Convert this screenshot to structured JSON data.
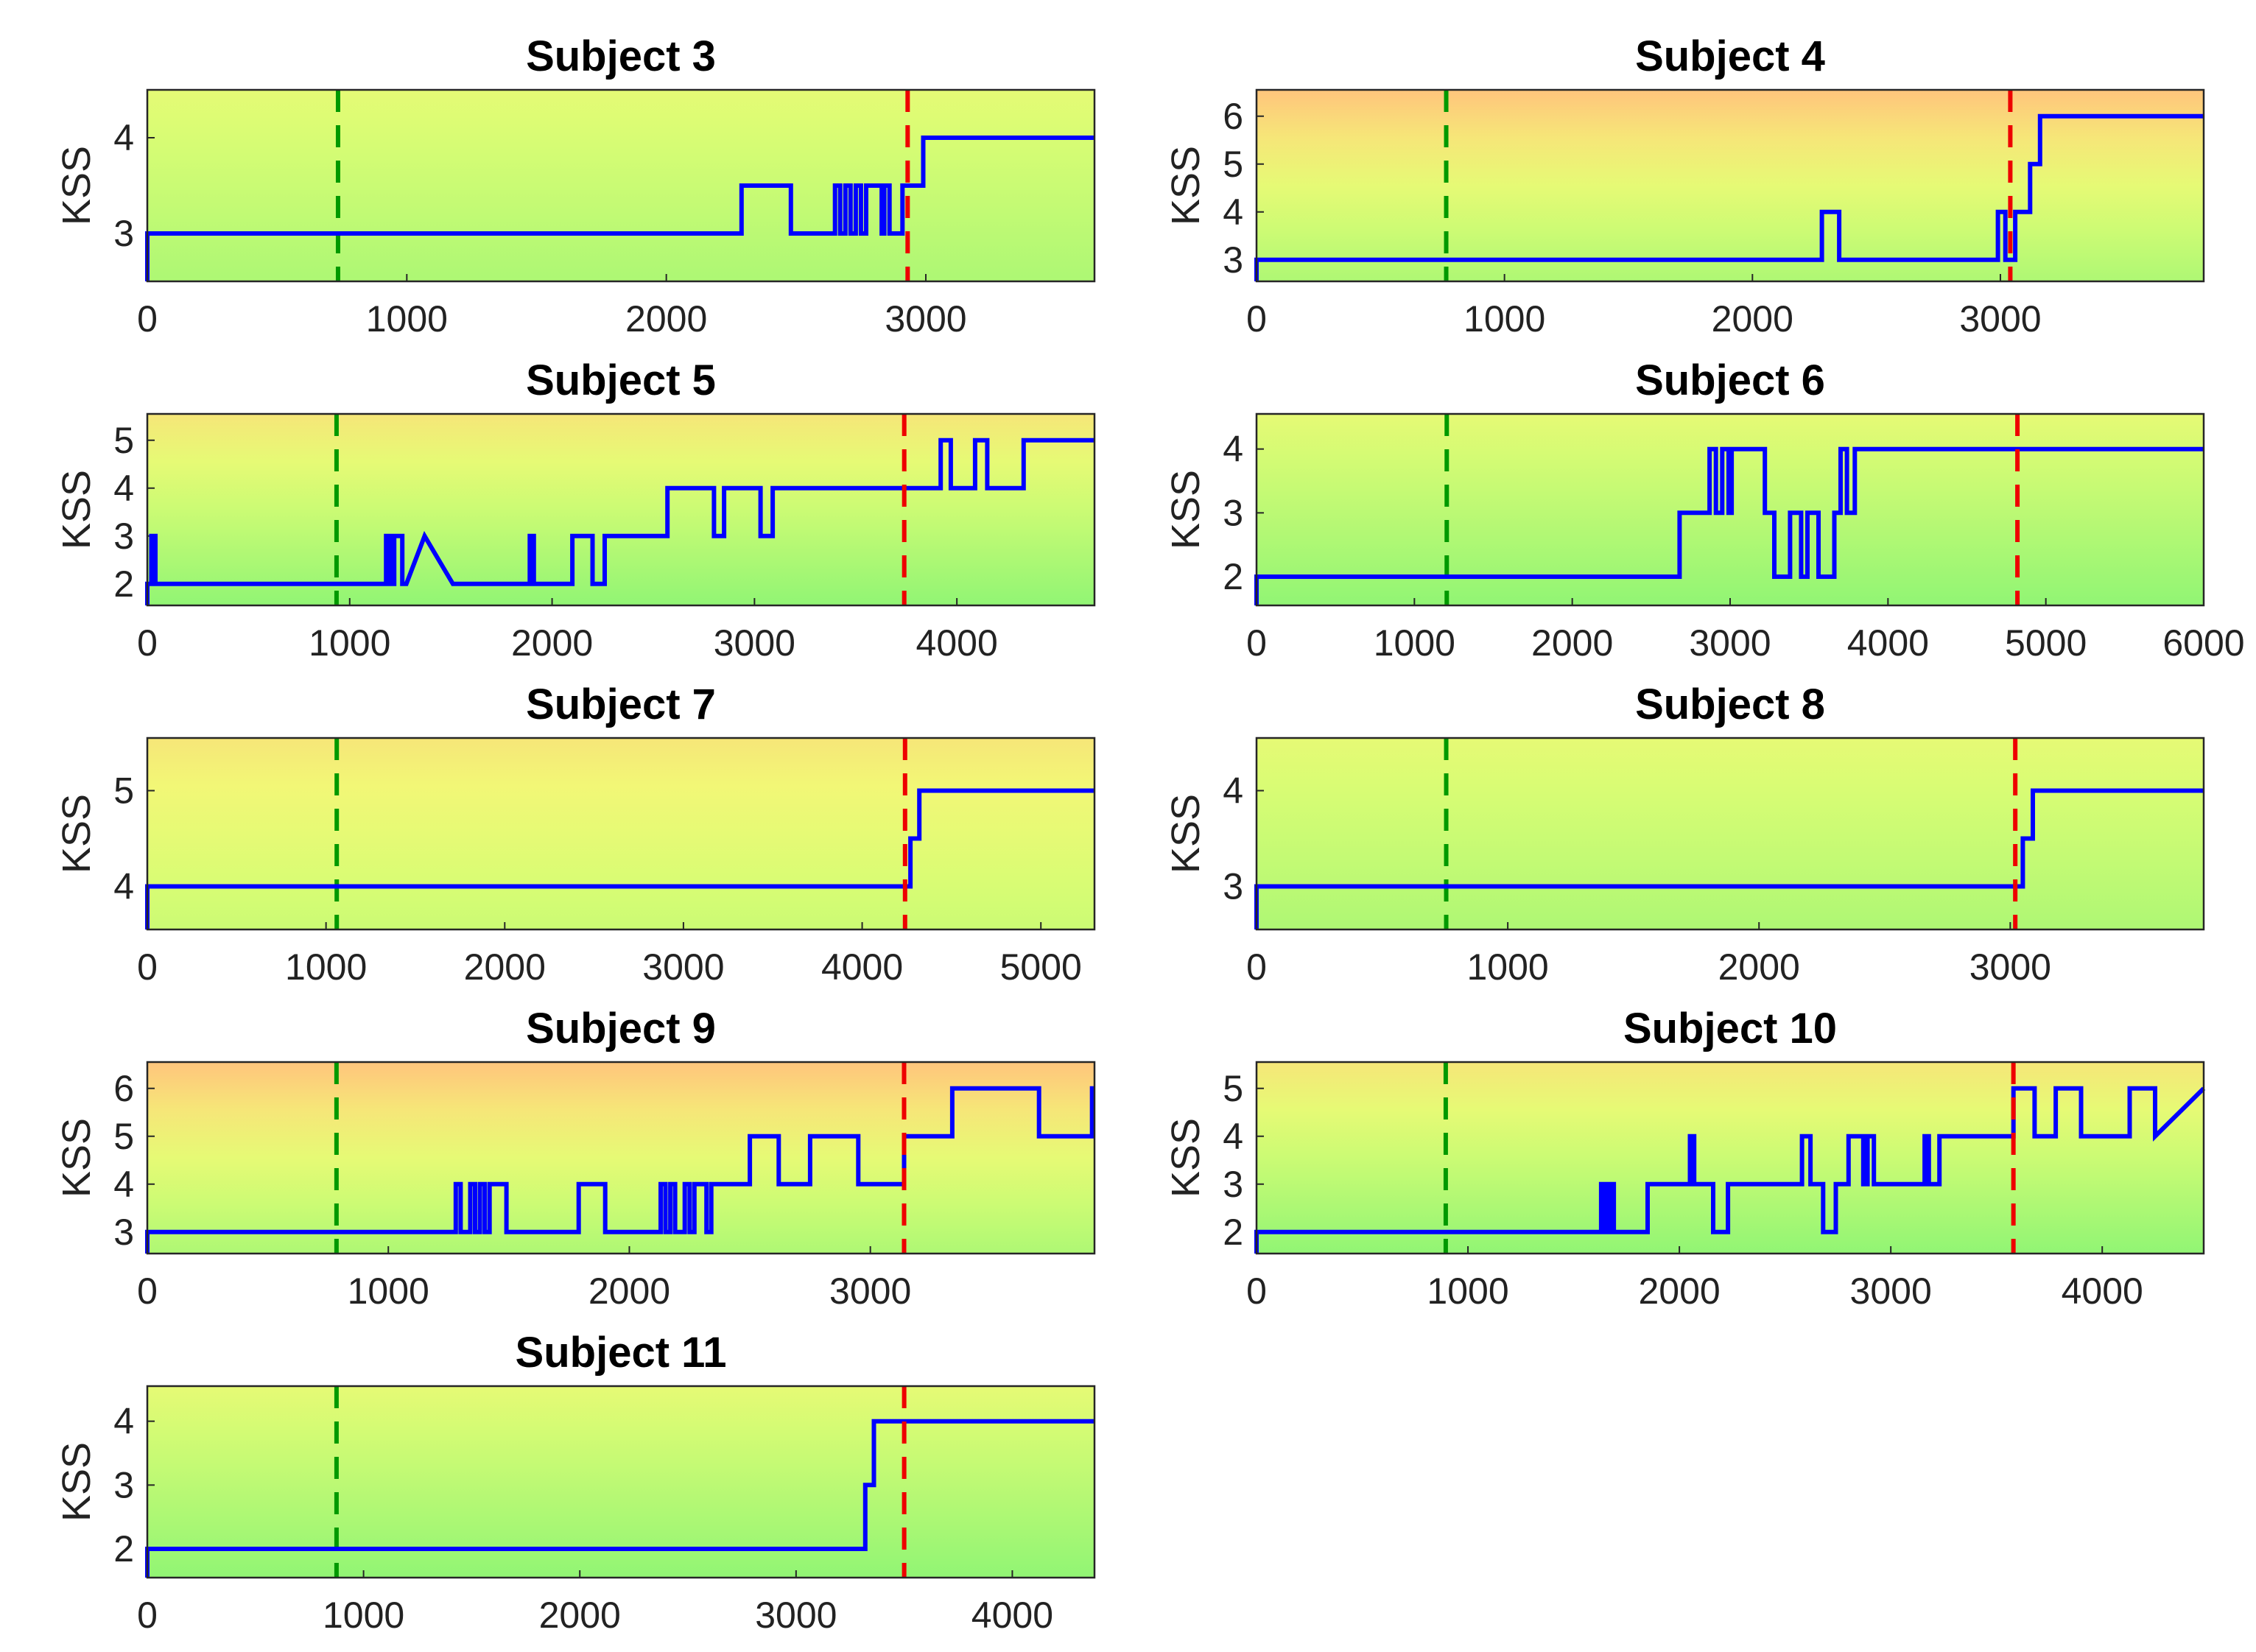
{
  "chart_data": [
    {
      "type": "line",
      "title": "Subject 3",
      "xlabel": "",
      "ylabel": "KSS",
      "xlim": [
        0,
        3650
      ],
      "ylim": [
        2.5,
        4.5
      ],
      "xticks": [
        0,
        1000,
        2000,
        3000
      ],
      "yticks": [
        3,
        4
      ],
      "green_marker_x": 735,
      "red_marker_x": 2930,
      "series": [
        {
          "name": "KSS",
          "x": [
            0,
            0,
            10,
            2290,
            2290,
            2480,
            2480,
            2650,
            2650,
            2670,
            2670,
            2690,
            2690,
            2710,
            2710,
            2730,
            2730,
            2750,
            2750,
            2770,
            2770,
            2830,
            2830,
            2840,
            2840,
            2860,
            2860,
            2880,
            2880,
            2910,
            2910,
            2950,
            2950,
            2990,
            2990,
            3650
          ],
          "y": [
            2.5,
            3,
            3,
            3,
            3.5,
            3.5,
            3,
            3,
            3.5,
            3.5,
            3,
            3,
            3.5,
            3.5,
            3,
            3,
            3.5,
            3.5,
            3,
            3,
            3.5,
            3.5,
            3,
            3,
            3.5,
            3.5,
            3,
            3,
            3,
            3,
            3.5,
            3.5,
            3.5,
            3.5,
            4,
            4
          ]
        }
      ]
    },
    {
      "type": "line",
      "title": "Subject 4",
      "xlabel": "",
      "ylabel": "KSS",
      "xlim": [
        0,
        3820
      ],
      "ylim": [
        2.55,
        6.55
      ],
      "xticks": [
        0,
        1000,
        2000,
        3000
      ],
      "yticks": [
        3,
        4,
        5,
        6
      ],
      "green_marker_x": 765,
      "red_marker_x": 3040,
      "series": [
        {
          "name": "KSS",
          "x": [
            0,
            0,
            10,
            2280,
            2280,
            2350,
            2350,
            2990,
            2990,
            3020,
            3020,
            3060,
            3060,
            3120,
            3120,
            3160,
            3160,
            3820
          ],
          "y": [
            2.55,
            3,
            3,
            3,
            4,
            4,
            3,
            3,
            4,
            4,
            3,
            3,
            4,
            4,
            5,
            5,
            6,
            6
          ]
        }
      ]
    },
    {
      "type": "line",
      "title": "Subject 5",
      "xlabel": "",
      "ylabel": "KSS",
      "xlim": [
        0,
        4680
      ],
      "ylim": [
        1.55,
        5.55
      ],
      "xticks": [
        0,
        1000,
        2000,
        3000,
        4000
      ],
      "yticks": [
        2,
        3,
        4,
        5
      ],
      "green_marker_x": 935,
      "red_marker_x": 3740,
      "series": [
        {
          "name": "KSS",
          "x": [
            0,
            0,
            20,
            20,
            40,
            40,
            1180,
            1180,
            1200,
            1200,
            1220,
            1220,
            1260,
            1260,
            1280,
            1280,
            1370,
            1370,
            1510,
            1510,
            1890,
            1890,
            1910,
            1910,
            2100,
            2100,
            2200,
            2200,
            2260,
            2260,
            2570,
            2570,
            2800,
            2800,
            2850,
            2850,
            3030,
            3030,
            3090,
            3090,
            3920,
            3920,
            3970,
            3970,
            4090,
            4090,
            4150,
            4150,
            4330,
            4330,
            4680
          ],
          "y": [
            1.55,
            2,
            2,
            3,
            3,
            2,
            2,
            3,
            3,
            2,
            2,
            3,
            3,
            2,
            2,
            2,
            3,
            3,
            2,
            2,
            2,
            3,
            3,
            2,
            2,
            3,
            3,
            2,
            2,
            3,
            3,
            4,
            4,
            3,
            3,
            4,
            4,
            3,
            3,
            4,
            4,
            5,
            5,
            4,
            4,
            5,
            5,
            4,
            4,
            5,
            5
          ]
        }
      ]
    },
    {
      "type": "line",
      "title": "Subject 6",
      "xlabel": "",
      "ylabel": "KSS",
      "xlim": [
        0,
        6000
      ],
      "ylim": [
        1.55,
        4.55
      ],
      "xticks": [
        0,
        1000,
        2000,
        3000,
        4000,
        5000,
        6000
      ],
      "yticks": [
        2,
        3,
        4
      ],
      "green_marker_x": 1205,
      "red_marker_x": 4820,
      "series": [
        {
          "name": "KSS",
          "x": [
            0,
            0,
            10,
            2680,
            2680,
            2870,
            2870,
            2910,
            2910,
            2950,
            2950,
            2990,
            2990,
            3010,
            3010,
            3220,
            3220,
            3280,
            3280,
            3380,
            3380,
            3450,
            3450,
            3490,
            3490,
            3560,
            3560,
            3660,
            3660,
            3700,
            3700,
            3740,
            3740,
            3790,
            3790,
            6000
          ],
          "y": [
            1.55,
            2,
            2,
            2,
            3,
            3,
            4,
            4,
            3,
            3,
            4,
            4,
            3,
            3,
            4,
            4,
            3,
            3,
            2,
            2,
            3,
            3,
            2,
            2,
            3,
            3,
            2,
            2,
            3,
            3,
            4,
            4,
            3,
            3,
            4,
            4
          ]
        }
      ]
    },
    {
      "type": "line",
      "title": "Subject 7",
      "xlabel": "",
      "ylabel": "KSS",
      "xlim": [
        0,
        5300
      ],
      "ylim": [
        3.55,
        5.55
      ],
      "xticks": [
        0,
        1000,
        2000,
        3000,
        4000,
        5000
      ],
      "yticks": [
        4,
        5
      ],
      "green_marker_x": 1060,
      "red_marker_x": 4240,
      "series": [
        {
          "name": "KSS",
          "x": [
            0,
            0,
            10,
            4270,
            4270,
            4320,
            4320,
            5300
          ],
          "y": [
            3.55,
            4,
            4,
            4,
            4.5,
            4.5,
            5,
            5
          ]
        }
      ]
    },
    {
      "type": "line",
      "title": "Subject 8",
      "xlabel": "",
      "ylabel": "KSS",
      "xlim": [
        0,
        3770
      ],
      "ylim": [
        2.55,
        4.55
      ],
      "xticks": [
        0,
        1000,
        2000,
        3000
      ],
      "yticks": [
        3,
        4
      ],
      "green_marker_x": 755,
      "red_marker_x": 3020,
      "series": [
        {
          "name": "KSS",
          "x": [
            0,
            0,
            10,
            3050,
            3050,
            3090,
            3090,
            3770
          ],
          "y": [
            2.55,
            3,
            3,
            3,
            3.5,
            3.5,
            4,
            4
          ]
        }
      ]
    },
    {
      "type": "line",
      "title": "Subject 9",
      "xlabel": "",
      "ylabel": "KSS",
      "xlim": [
        0,
        3930
      ],
      "ylim": [
        2.55,
        6.55
      ],
      "xticks": [
        0,
        1000,
        2000,
        3000
      ],
      "yticks": [
        3,
        4,
        5,
        6
      ],
      "green_marker_x": 785,
      "red_marker_x": 3140,
      "series": [
        {
          "name": "KSS",
          "x": [
            0,
            0,
            10,
            1280,
            1280,
            1300,
            1300,
            1340,
            1340,
            1360,
            1360,
            1380,
            1380,
            1400,
            1400,
            1420,
            1420,
            1490,
            1490,
            1790,
            1790,
            1900,
            1900,
            2130,
            2130,
            2150,
            2150,
            2170,
            2170,
            2190,
            2190,
            2230,
            2230,
            2250,
            2250,
            2270,
            2270,
            2320,
            2320,
            2340,
            2340,
            2390,
            2390,
            2410,
            2410,
            2500,
            2500,
            2620,
            2620,
            2750,
            2750,
            2790,
            2790,
            2950,
            2950,
            3140,
            3140,
            3340,
            3340,
            3700,
            3700,
            3920,
            3920,
            3930
          ],
          "y": [
            2.55,
            3,
            3,
            3,
            4,
            4,
            3,
            3,
            4,
            4,
            3,
            3,
            4,
            4,
            3,
            3,
            4,
            4,
            3,
            3,
            4,
            4,
            3,
            3,
            4,
            4,
            3,
            3,
            4,
            4,
            3,
            3,
            4,
            4,
            3,
            3,
            4,
            4,
            3,
            3,
            4,
            4,
            4,
            4,
            4,
            4,
            5,
            5,
            4,
            4,
            5,
            5,
            5,
            5,
            4,
            4,
            5,
            5,
            6,
            6,
            5,
            5,
            6,
            6
          ]
        }
      ]
    },
    {
      "type": "line",
      "title": "Subject 10",
      "xlabel": "",
      "ylabel": "KSS",
      "xlim": [
        0,
        4480
      ],
      "ylim": [
        1.55,
        5.55
      ],
      "xticks": [
        0,
        1000,
        2000,
        3000,
        4000
      ],
      "yticks": [
        2,
        3,
        4,
        5
      ],
      "green_marker_x": 895,
      "red_marker_x": 3580,
      "series": [
        {
          "name": "KSS",
          "x": [
            0,
            0,
            10,
            1630,
            1630,
            1650,
            1650,
            1670,
            1670,
            1690,
            1690,
            1850,
            1850,
            1900,
            1900,
            2050,
            2050,
            2070,
            2070,
            2160,
            2160,
            2230,
            2230,
            2270,
            2270,
            2580,
            2580,
            2620,
            2620,
            2680,
            2680,
            2740,
            2740,
            2800,
            2800,
            2870,
            2870,
            2890,
            2890,
            2920,
            2920,
            2960,
            2960,
            3160,
            3160,
            3180,
            3180,
            3230,
            3230,
            3250,
            3250,
            3580,
            3580,
            3680,
            3680,
            3780,
            3780,
            3900,
            3900,
            4130,
            4130,
            4250,
            4250,
            4480
          ],
          "y": [
            1.55,
            2,
            2,
            2,
            3,
            3,
            2,
            2,
            3,
            3,
            2,
            2,
            3,
            3,
            3,
            3,
            4,
            4,
            3,
            3,
            2,
            2,
            3,
            3,
            3,
            3,
            4,
            4,
            3,
            3,
            2,
            2,
            3,
            3,
            4,
            4,
            3,
            3,
            4,
            4,
            3,
            3,
            3,
            3,
            4,
            4,
            3,
            3,
            4,
            4,
            4,
            4,
            5,
            5,
            4,
            4,
            5,
            5,
            4,
            4,
            5,
            5,
            4,
            5
          ]
        }
      ]
    },
    {
      "type": "line",
      "title": "Subject 11",
      "xlabel": "",
      "ylabel": "KSS",
      "xlim": [
        0,
        4380
      ],
      "ylim": [
        1.55,
        4.55
      ],
      "xticks": [
        0,
        1000,
        2000,
        3000,
        4000
      ],
      "yticks": [
        2,
        3,
        4
      ],
      "green_marker_x": 875,
      "red_marker_x": 3500,
      "series": [
        {
          "name": "KSS",
          "x": [
            0,
            0,
            10,
            3320,
            3320,
            3360,
            3360,
            4380
          ],
          "y": [
            1.55,
            2,
            2,
            2,
            3,
            3,
            4,
            4
          ]
        }
      ]
    }
  ],
  "colors": {
    "line": "#0000ff",
    "green_marker": "#009900",
    "red_marker": "#ee0000",
    "bg_low": "#90f574",
    "bg_mid": "#e4fc74",
    "bg_high": "#ffc37c",
    "axes": "#262626"
  }
}
